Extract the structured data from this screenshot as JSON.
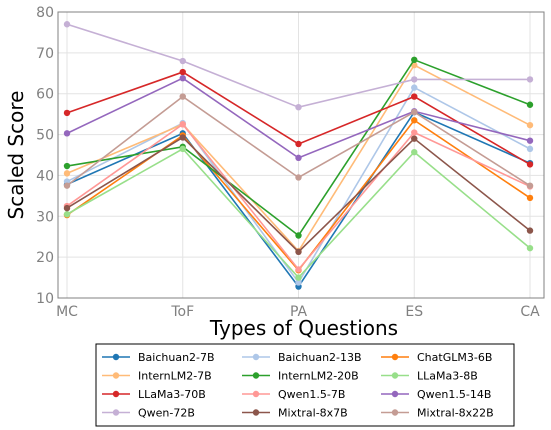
{
  "chart_data": {
    "type": "line",
    "title": "",
    "xlabel": "Types of Questions",
    "ylabel": "Scaled Score",
    "categories": [
      "MC",
      "ToF",
      "PA",
      "ES",
      "CA"
    ],
    "y_ticks": [
      10,
      20,
      30,
      40,
      50,
      60,
      70,
      80
    ],
    "ylim": [
      10,
      80
    ],
    "grid": true,
    "legend_position": "bottom",
    "series": [
      {
        "name": "Baichuan2-7B",
        "color": "#1f77b4",
        "values": [
          37.8,
          50.3,
          12.8,
          55.5,
          43.0
        ]
      },
      {
        "name": "Baichuan2-13B",
        "color": "#aec7e8",
        "values": [
          38.5,
          52.8,
          13.8,
          61.5,
          46.5
        ]
      },
      {
        "name": "ChatGLM3-6B",
        "color": "#ff7f0e",
        "values": [
          30.3,
          49.8,
          16.8,
          53.5,
          34.5
        ]
      },
      {
        "name": "InternLM2-7B",
        "color": "#ffbb78",
        "values": [
          40.5,
          52.5,
          21.5,
          67.0,
          52.3
        ]
      },
      {
        "name": "InternLM2-20B",
        "color": "#2ca02c",
        "values": [
          42.3,
          47.0,
          25.3,
          68.3,
          57.3
        ]
      },
      {
        "name": "LLaMa3-8B",
        "color": "#98df8a",
        "values": [
          30.5,
          46.5,
          15.0,
          45.7,
          22.2
        ]
      },
      {
        "name": "LLaMa3-70B",
        "color": "#d62728",
        "values": [
          55.3,
          65.3,
          47.7,
          59.3,
          42.7
        ]
      },
      {
        "name": "Qwen1.5-7B",
        "color": "#ff9896",
        "values": [
          32.5,
          52.5,
          17.0,
          50.5,
          37.3
        ]
      },
      {
        "name": "Qwen1.5-14B",
        "color": "#9467bd",
        "values": [
          50.3,
          63.8,
          44.3,
          55.7,
          48.5
        ]
      },
      {
        "name": "Qwen-72B",
        "color": "#c5b0d5",
        "values": [
          77.0,
          68.0,
          56.7,
          63.5,
          63.5
        ]
      },
      {
        "name": "Mixtral-8x7B",
        "color": "#8c564b",
        "values": [
          32.0,
          49.3,
          21.3,
          49.0,
          26.5
        ]
      },
      {
        "name": "Mixtral-8x22B",
        "color": "#c49c94",
        "values": [
          37.5,
          59.3,
          39.5,
          55.5,
          37.5
        ]
      }
    ]
  }
}
